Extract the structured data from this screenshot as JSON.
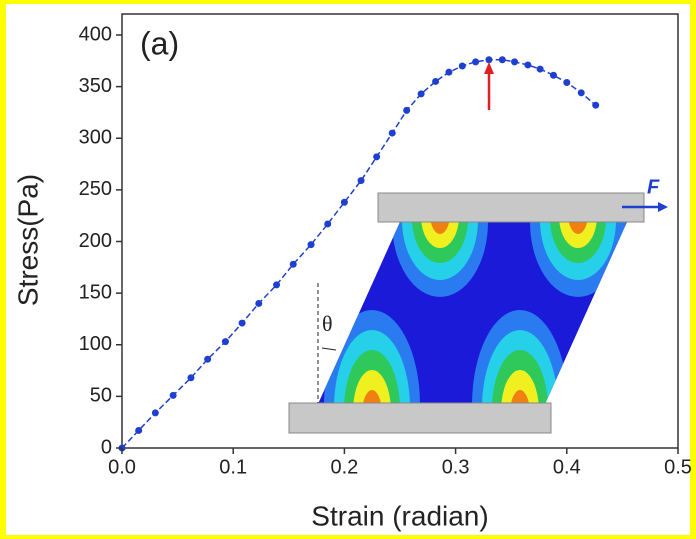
{
  "chart_data": {
    "type": "line",
    "x_label": "Strain (radian)",
    "y_label": "Stress(Pa)",
    "panel_label": "(a)",
    "force_label": "F",
    "angle_label": "θ",
    "x": [
      0,
      0.015,
      0.03,
      0.046,
      0.062,
      0.077,
      0.093,
      0.108,
      0.123,
      0.139,
      0.154,
      0.17,
      0.185,
      0.2,
      0.215,
      0.229,
      0.243,
      0.256,
      0.269,
      0.282,
      0.294,
      0.306,
      0.318,
      0.33,
      0.342,
      0.353,
      0.365,
      0.376,
      0.388,
      0.4,
      0.413,
      0.426
    ],
    "series": [
      {
        "color": "#1f3fd0",
        "values": [
          0,
          17,
          34,
          51,
          68,
          86,
          103,
          121,
          140,
          158,
          178,
          197,
          217,
          238,
          259,
          282,
          305,
          327,
          343,
          355,
          364,
          370,
          374,
          376,
          376,
          374,
          371,
          367,
          361,
          354,
          344,
          332
        ]
      }
    ],
    "xlim": [
      0,
      0.5
    ],
    "ylim": [
      0,
      400
    ],
    "xticks": [
      {
        "value": 0,
        "label": "0.0"
      },
      0.1,
      0.2,
      0.3,
      0.4,
      0.5
    ],
    "yticks": [
      0,
      50,
      100,
      150,
      200,
      250,
      300,
      350,
      400
    ]
  }
}
